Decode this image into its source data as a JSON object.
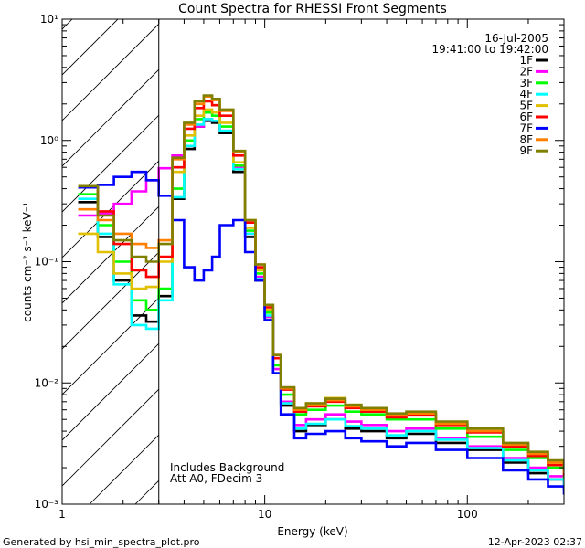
{
  "chart_data": {
    "type": "line",
    "title": "Count Spectra for RHESSI Front Segments",
    "xlabel": "Energy (keV)",
    "ylabel": "counts cm⁻² s⁻¹ keV⁻¹",
    "x_scale": "log",
    "y_scale": "log",
    "xlim": [
      1,
      300
    ],
    "ylim": [
      0.001,
      10
    ],
    "x_ticks": [
      {
        "value": 1,
        "label": "1"
      },
      {
        "value": 10,
        "label": "10"
      },
      {
        "value": 100,
        "label": "100"
      }
    ],
    "y_ticks": [
      {
        "value": 0.001,
        "label": "10⁻³"
      },
      {
        "value": 0.01,
        "label": "10⁻²"
      },
      {
        "value": 0.1,
        "label": "10⁻¹"
      },
      {
        "value": 1,
        "label": "10⁰"
      },
      {
        "value": 10,
        "label": "10¹"
      }
    ],
    "hatch_region_xmax": 3,
    "date": "16-Jul-2005",
    "time_range": "19:41:00 to 19:42:00",
    "annotations": [
      "Includes Background",
      "Att A0, FDecim 3"
    ],
    "legend_position": "top-right",
    "series": [
      {
        "name": "1F",
        "color": "#000000",
        "x": [
          1.2,
          1.5,
          1.8,
          2.2,
          2.6,
          3,
          3.5,
          4,
          4.5,
          5,
          5.5,
          6,
          7,
          8,
          9,
          10,
          11,
          12,
          14,
          16,
          20,
          25,
          30,
          40,
          50,
          70,
          100,
          150,
          200,
          250,
          300
        ],
        "y": [
          0.31,
          0.16,
          0.07,
          0.036,
          0.032,
          0.052,
          0.33,
          0.85,
          1.3,
          1.45,
          1.4,
          1.15,
          0.55,
          0.16,
          0.07,
          0.035,
          0.012,
          0.0065,
          0.004,
          0.0045,
          0.005,
          0.0042,
          0.004,
          0.0035,
          0.0038,
          0.0032,
          0.0028,
          0.0022,
          0.0018,
          0.0016,
          0.0013
        ]
      },
      {
        "name": "2F",
        "color": "#ff00ff",
        "x": [
          1.2,
          1.5,
          1.8,
          2.2,
          2.6,
          3,
          3.5,
          4,
          4.5,
          5,
          5.5,
          6,
          7,
          8,
          9,
          10,
          11,
          12,
          14,
          16,
          20,
          25,
          30,
          40,
          50,
          70,
          100,
          150,
          200,
          250,
          300
        ],
        "y": [
          0.24,
          0.25,
          0.3,
          0.38,
          0.47,
          0.59,
          0.75,
          1.0,
          1.3,
          1.5,
          1.45,
          1.2,
          0.6,
          0.17,
          0.075,
          0.035,
          0.013,
          0.007,
          0.0045,
          0.005,
          0.0055,
          0.0048,
          0.0045,
          0.004,
          0.0042,
          0.0035,
          0.003,
          0.0024,
          0.002,
          0.0017,
          0.0014
        ]
      },
      {
        "name": "3F",
        "color": "#00ff00",
        "x": [
          1.2,
          1.5,
          1.8,
          2.2,
          2.6,
          3,
          3.5,
          4,
          4.5,
          5,
          5.5,
          6,
          7,
          8,
          9,
          10,
          11,
          12,
          14,
          16,
          20,
          25,
          30,
          40,
          50,
          70,
          100,
          150,
          200,
          250,
          300
        ],
        "y": [
          0.36,
          0.2,
          0.1,
          0.048,
          0.04,
          0.06,
          0.4,
          1.0,
          1.5,
          1.7,
          1.6,
          1.3,
          0.62,
          0.18,
          0.08,
          0.038,
          0.014,
          0.008,
          0.0055,
          0.006,
          0.0065,
          0.0058,
          0.0055,
          0.005,
          0.005,
          0.0042,
          0.0036,
          0.0028,
          0.0024,
          0.002,
          0.0016
        ]
      },
      {
        "name": "4F",
        "color": "#00ffff",
        "x": [
          1.2,
          1.5,
          1.8,
          2.2,
          2.6,
          3,
          3.5,
          4,
          4.5,
          5,
          5.5,
          6,
          7,
          8,
          9,
          10,
          11,
          12,
          14,
          16,
          20,
          25,
          30,
          40,
          50,
          70,
          100,
          150,
          200,
          250,
          300
        ],
        "y": [
          0.33,
          0.17,
          0.065,
          0.03,
          0.028,
          0.048,
          0.34,
          0.9,
          1.35,
          1.5,
          1.45,
          1.2,
          0.58,
          0.17,
          0.072,
          0.036,
          0.012,
          0.0068,
          0.0042,
          0.0046,
          0.005,
          0.0044,
          0.0042,
          0.0037,
          0.004,
          0.0034,
          0.0029,
          0.0023,
          0.0019,
          0.0016,
          0.0013
        ]
      },
      {
        "name": "5F",
        "color": "#e0c000",
        "x": [
          1.2,
          1.5,
          1.8,
          2.2,
          2.6,
          3,
          3.5,
          4,
          4.5,
          5,
          5.5,
          6,
          7,
          8,
          9,
          10,
          11,
          12,
          14,
          16,
          20,
          25,
          30,
          40,
          50,
          70,
          100,
          150,
          200,
          250,
          300
        ],
        "y": [
          0.17,
          0.12,
          0.08,
          0.06,
          0.062,
          0.1,
          0.55,
          1.1,
          1.6,
          1.8,
          1.7,
          1.4,
          0.66,
          0.19,
          0.085,
          0.04,
          0.016,
          0.009,
          0.006,
          0.0068,
          0.0075,
          0.0066,
          0.006,
          0.0055,
          0.0055,
          0.0046,
          0.004,
          0.0031,
          0.0026,
          0.0022,
          0.0018
        ]
      },
      {
        "name": "6F",
        "color": "#ff0000",
        "x": [
          1.2,
          1.5,
          1.8,
          2.2,
          2.6,
          3,
          3.5,
          4,
          4.5,
          5,
          5.5,
          6,
          7,
          8,
          9,
          10,
          11,
          12,
          14,
          16,
          20,
          25,
          30,
          40,
          50,
          70,
          100,
          150,
          200,
          250,
          300
        ],
        "y": [
          0.41,
          0.26,
          0.14,
          0.085,
          0.075,
          0.11,
          0.6,
          1.25,
          1.85,
          2.1,
          1.95,
          1.6,
          0.75,
          0.21,
          0.09,
          0.042,
          0.016,
          0.0088,
          0.0058,
          0.0064,
          0.007,
          0.0062,
          0.0058,
          0.0052,
          0.0054,
          0.0045,
          0.0039,
          0.003,
          0.0025,
          0.0021,
          0.0017
        ]
      },
      {
        "name": "7F",
        "color": "#0000ff",
        "x": [
          1.2,
          1.5,
          1.8,
          2.2,
          2.6,
          3,
          3.5,
          4,
          4.5,
          5,
          5.5,
          6,
          7,
          8,
          9,
          10,
          11,
          12,
          14,
          16,
          20,
          25,
          30,
          40,
          50,
          70,
          100,
          150,
          200,
          250,
          300
        ],
        "y": [
          0.41,
          0.43,
          0.5,
          0.55,
          0.47,
          0.35,
          0.22,
          0.09,
          0.07,
          0.085,
          0.11,
          0.2,
          0.22,
          0.12,
          0.07,
          0.033,
          0.012,
          0.0055,
          0.0035,
          0.0038,
          0.004,
          0.0035,
          0.0033,
          0.003,
          0.0032,
          0.0028,
          0.0024,
          0.0019,
          0.0016,
          0.0014,
          0.0012
        ]
      },
      {
        "name": "8F",
        "color": "#ff8000",
        "x": [
          1.2,
          1.5,
          1.8,
          2.2,
          2.6,
          3,
          3.5,
          4,
          4.5,
          5,
          5.5,
          6,
          7,
          8,
          9,
          10,
          11,
          12,
          14,
          16,
          20,
          25,
          30,
          40,
          50,
          70,
          100,
          150,
          200,
          250,
          300
        ],
        "y": [
          0.27,
          0.22,
          0.17,
          0.14,
          0.13,
          0.15,
          0.7,
          1.35,
          2.0,
          2.3,
          2.15,
          1.75,
          0.8,
          0.22,
          0.095,
          0.044,
          0.017,
          0.009,
          0.006,
          0.0066,
          0.0072,
          0.0064,
          0.006,
          0.0054,
          0.0056,
          0.0046,
          0.004,
          0.0031,
          0.0026,
          0.0022,
          0.0018
        ]
      },
      {
        "name": "9F",
        "color": "#808000",
        "x": [
          1.2,
          1.5,
          1.8,
          2.2,
          2.6,
          3,
          3.5,
          4,
          4.5,
          5,
          5.5,
          6,
          7,
          8,
          9,
          10,
          11,
          12,
          14,
          16,
          20,
          25,
          30,
          40,
          50,
          70,
          100,
          150,
          200,
          250,
          300
        ],
        "y": [
          0.42,
          0.24,
          0.15,
          0.11,
          0.1,
          0.14,
          0.72,
          1.4,
          2.1,
          2.35,
          2.2,
          1.8,
          0.82,
          0.22,
          0.095,
          0.044,
          0.017,
          0.0092,
          0.0062,
          0.0068,
          0.0074,
          0.0066,
          0.0062,
          0.0056,
          0.0058,
          0.0048,
          0.0042,
          0.0032,
          0.0027,
          0.0023,
          0.0019
        ]
      }
    ]
  },
  "footer": {
    "generated_by": "Generated by hsi_min_spectra_plot.pro",
    "timestamp": "12-Apr-2023 02:37"
  }
}
